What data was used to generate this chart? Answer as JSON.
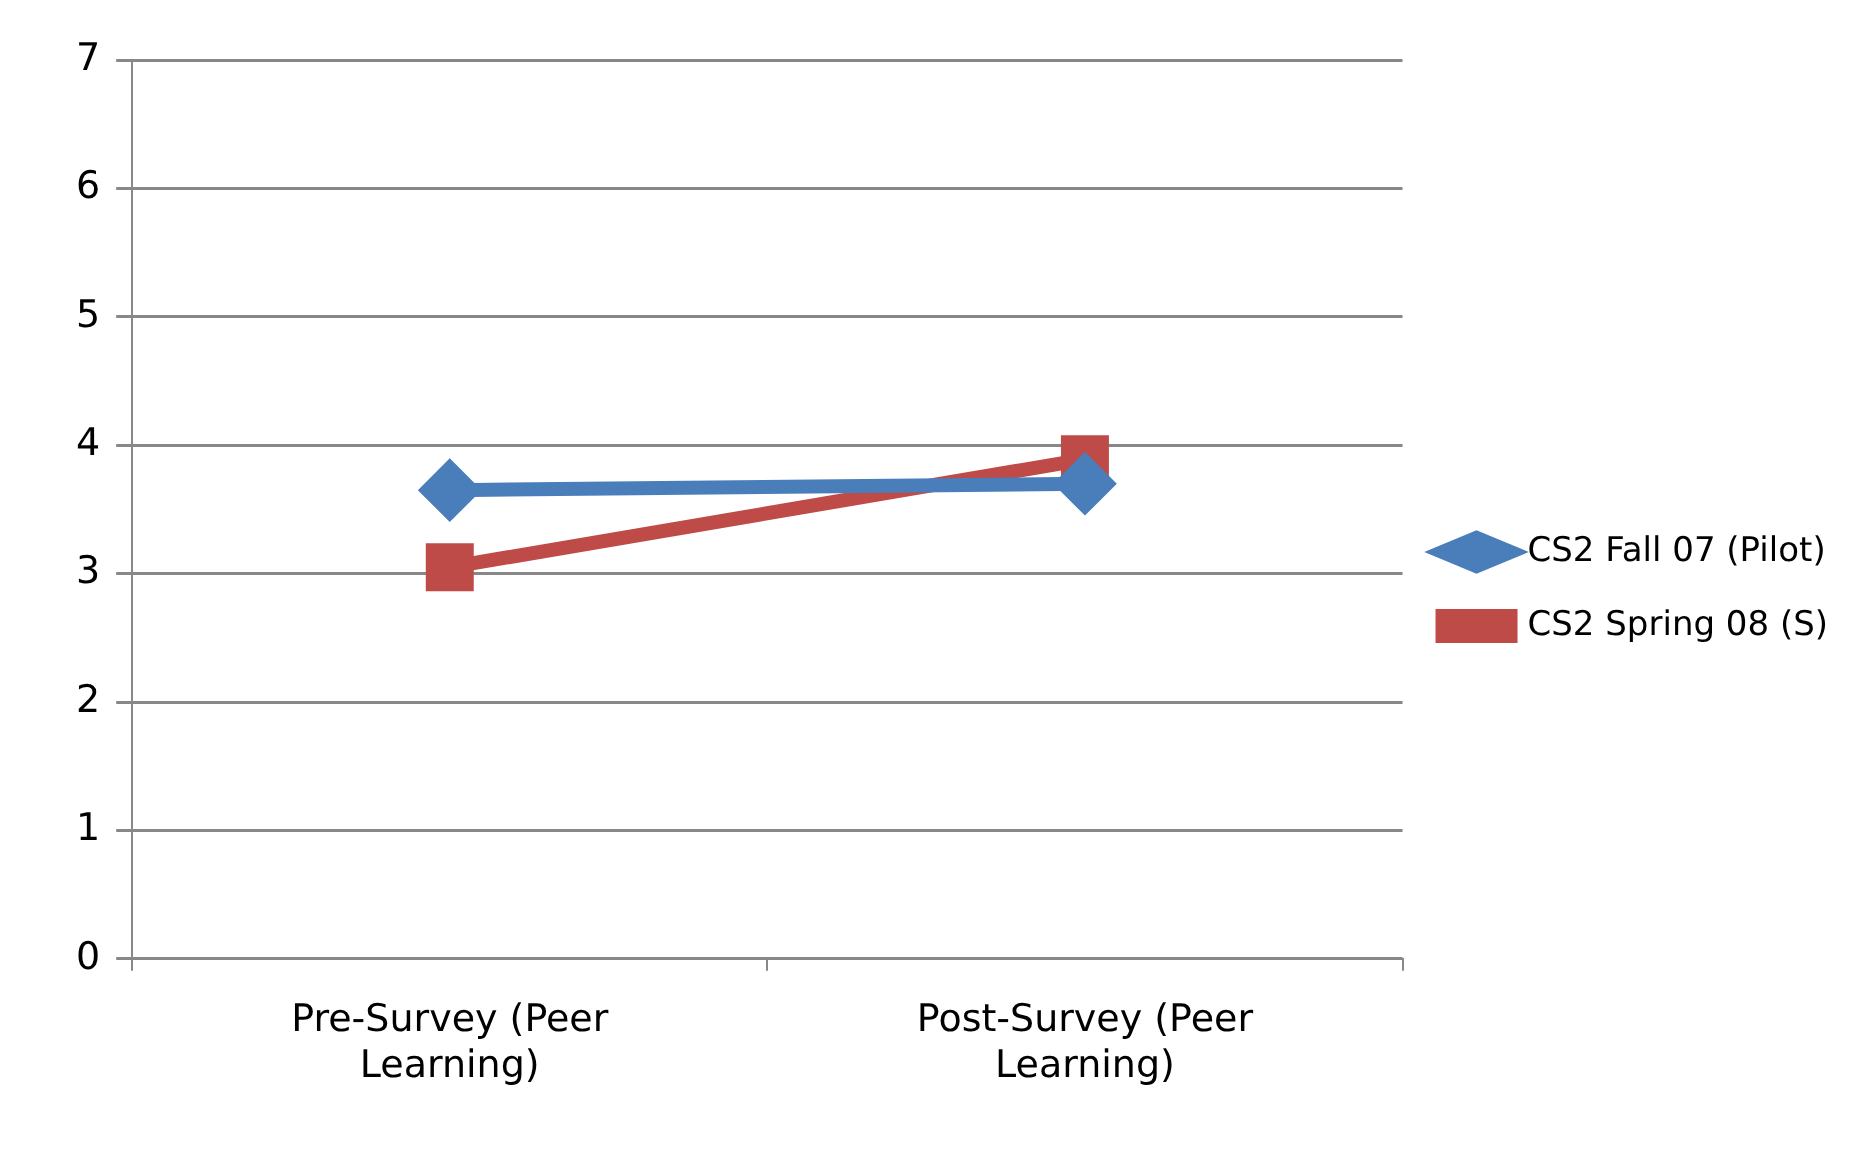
{
  "chart_data": {
    "type": "line",
    "categories": [
      "Pre-Survey (Peer Learning)",
      "Post-Survey (Peer Learning)"
    ],
    "series": [
      {
        "name": "CS2 Fall 07 (Pilot)",
        "color": "#4a7ebb",
        "marker": "diamond",
        "values": [
          3.65,
          3.7
        ]
      },
      {
        "name": "CS2 Spring 08 (S)",
        "color": "#be4b48",
        "marker": "square",
        "values": [
          3.05,
          3.89
        ]
      }
    ],
    "ylim": [
      0,
      7
    ],
    "yticks": [
      0,
      1,
      2,
      3,
      4,
      5,
      6,
      7
    ],
    "grid": "y",
    "legend": "right",
    "line_style": "solid"
  }
}
